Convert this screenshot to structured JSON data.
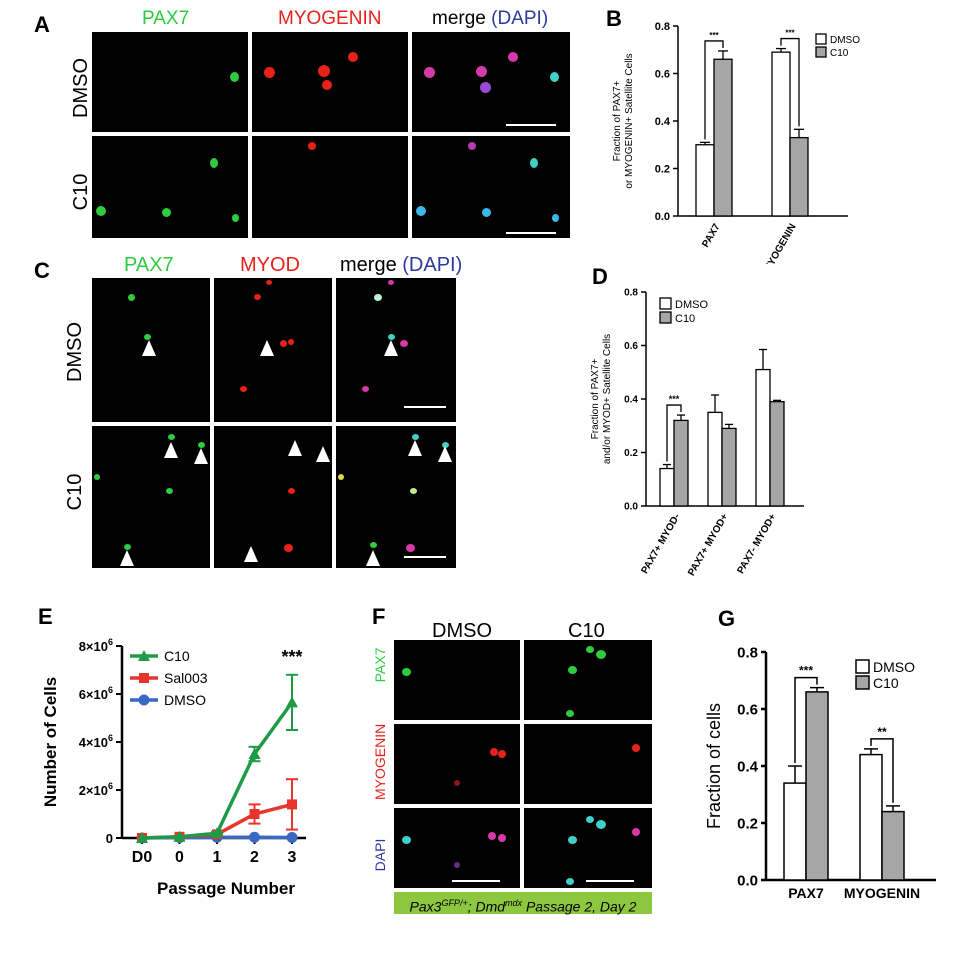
{
  "colors": {
    "green": "#2ecc40",
    "red": "#e8221b",
    "blue": "#2b3a9c",
    "gray": "#a6a6a6",
    "plot_green": "#1f9b48",
    "plot_red": "#e8342a",
    "plot_blue": "#3a67c2",
    "banner": "#8dc63f"
  },
  "panel_labels": {
    "A": "A",
    "B": "B",
    "C": "C",
    "D": "D",
    "E": "E",
    "F": "F",
    "G": "G"
  },
  "panelA": {
    "col1": "PAX7",
    "col2": "MYOGENIN",
    "col3a": "merge ",
    "col3b": "(DAPI)",
    "row1": "DMSO",
    "row2": "C10"
  },
  "panelC": {
    "col1": "PAX7",
    "col2": "MYOD",
    "col3a": "merge ",
    "col3b": "(DAPI)",
    "row1": "DMSO",
    "row2": "C10"
  },
  "panelF": {
    "col1": "DMSO",
    "col2": "C10",
    "row1": "PAX7",
    "row2": "MYOGENIN",
    "row3": "DAPI",
    "banner": "Pax3GFP/+; Dmdmdx Passage 2, Day 2",
    "banner_parts": {
      "a": "Pax3",
      "a_sup": "GFP/+",
      "b": "; Dmd",
      "b_sup": "mdx",
      "c": " Passage 2, Day 2"
    }
  },
  "chart_data": [
    {
      "id": "B",
      "type": "bar",
      "categories": [
        "PAX7",
        "MYOGENIN"
      ],
      "series": [
        {
          "name": "DMSO",
          "values": [
            0.3,
            0.69
          ],
          "errors": [
            0.01,
            0.015
          ]
        },
        {
          "name": "C10",
          "values": [
            0.66,
            0.33
          ],
          "errors": [
            0.035,
            0.035
          ]
        }
      ],
      "ylabel": "Fraction of PAX7+ or MYOGENIN+ Satellite Cells",
      "ylim": [
        0,
        0.8
      ],
      "yticks": [
        "0.0",
        "0.2",
        "0.4",
        "0.6",
        "0.8"
      ],
      "significance": [
        "***",
        "***"
      ],
      "legend": "top-right"
    },
    {
      "id": "D",
      "type": "bar",
      "categories": [
        "PAX7+ MYOD-",
        "PAX7+ MYOD+",
        "PAX7- MYOD+"
      ],
      "series": [
        {
          "name": "DMSO",
          "values": [
            0.14,
            0.35,
            0.51
          ],
          "errors": [
            0.015,
            0.065,
            0.075
          ]
        },
        {
          "name": "C10",
          "values": [
            0.32,
            0.29,
            0.39
          ],
          "errors": [
            0.02,
            0.015,
            0.005
          ]
        }
      ],
      "ylabel": "Fraction of PAX7+ and/or MYOD+ Satellite Cells",
      "ylim": [
        0,
        0.8
      ],
      "yticks": [
        "0.0",
        "0.2",
        "0.4",
        "0.6",
        "0.8"
      ],
      "significance": [
        "***"
      ],
      "legend": "top-left"
    },
    {
      "id": "E",
      "type": "line",
      "x": [
        "D0",
        "0",
        "1",
        "2",
        "3"
      ],
      "series": [
        {
          "name": "C10",
          "values": [
            0,
            50000,
            200000,
            3500000,
            5650000
          ],
          "errors": [
            0,
            20000,
            50000,
            300000,
            1150000
          ]
        },
        {
          "name": "Sal003",
          "values": [
            0,
            50000,
            150000,
            1000000,
            1400000
          ],
          "errors": [
            0,
            20000,
            50000,
            400000,
            1050000
          ]
        },
        {
          "name": "DMSO",
          "values": [
            0,
            20000,
            30000,
            30000,
            20000
          ],
          "errors": [
            0,
            0,
            0,
            0,
            0
          ]
        }
      ],
      "xlabel": "Passage Number",
      "ylabel": "Number of Cells",
      "ylim": [
        0,
        8000000
      ],
      "yticks": [
        "0",
        "2×10",
        "4×10",
        "6×10",
        "8×10"
      ],
      "ytick_exp": "6",
      "significance": "***",
      "legend": "top-left"
    },
    {
      "id": "G",
      "type": "bar",
      "categories": [
        "PAX7",
        "MYOGENIN"
      ],
      "series": [
        {
          "name": "DMSO",
          "values": [
            0.34,
            0.44
          ],
          "errors": [
            0.06,
            0.02
          ]
        },
        {
          "name": "C10",
          "values": [
            0.66,
            0.24
          ],
          "errors": [
            0.015,
            0.02
          ]
        }
      ],
      "ylabel": "Fraction of cells",
      "ylim": [
        0,
        0.8
      ],
      "yticks": [
        "0.0",
        "0.2",
        "0.4",
        "0.6",
        "0.8"
      ],
      "significance": [
        "***",
        "**"
      ],
      "legend": "top-right"
    }
  ]
}
